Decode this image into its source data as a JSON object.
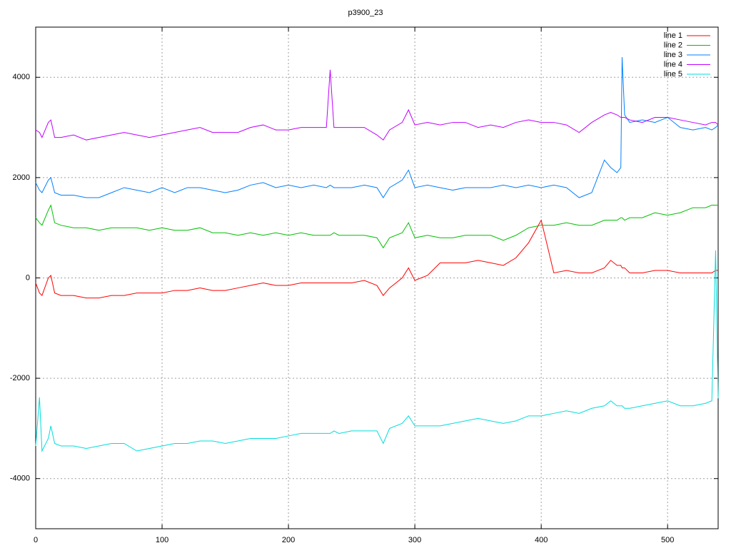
{
  "chart_data": {
    "type": "line",
    "title": "p3900_23",
    "x": [
      0,
      3,
      5,
      10,
      12,
      15,
      20,
      30,
      40,
      50,
      60,
      70,
      80,
      90,
      100,
      110,
      120,
      130,
      140,
      150,
      160,
      170,
      180,
      190,
      200,
      210,
      220,
      230,
      233,
      236,
      240,
      250,
      260,
      270,
      275,
      280,
      290,
      295,
      300,
      310,
      320,
      330,
      340,
      350,
      360,
      370,
      380,
      390,
      400,
      410,
      420,
      430,
      440,
      450,
      455,
      460,
      463,
      464,
      466,
      470,
      480,
      490,
      500,
      510,
      520,
      530,
      535,
      538,
      540
    ],
    "series": [
      {
        "name": "line 1",
        "color": "#ff0000",
        "values": [
          -100,
          -300,
          -350,
          0,
          50,
          -300,
          -350,
          -350,
          -400,
          -400,
          -350,
          -350,
          -300,
          -300,
          -300,
          -250,
          -250,
          -200,
          -250,
          -250,
          -200,
          -150,
          -100,
          -150,
          -150,
          -100,
          -100,
          -100,
          -100,
          -100,
          -100,
          -100,
          -50,
          -150,
          -350,
          -200,
          0,
          200,
          -50,
          50,
          300,
          300,
          300,
          350,
          300,
          250,
          400,
          700,
          1150,
          100,
          150,
          100,
          100,
          200,
          350,
          250,
          250,
          200,
          200,
          100,
          100,
          150,
          150,
          100,
          100,
          100,
          100,
          150,
          150
        ]
      },
      {
        "name": "line 2",
        "color": "#00c000",
        "values": [
          1200,
          1100,
          1050,
          1350,
          1450,
          1100,
          1050,
          1000,
          1000,
          950,
          1000,
          1000,
          1000,
          950,
          1000,
          950,
          950,
          1000,
          900,
          900,
          850,
          900,
          850,
          900,
          850,
          900,
          850,
          850,
          850,
          900,
          850,
          850,
          850,
          800,
          600,
          800,
          900,
          1100,
          800,
          850,
          800,
          800,
          850,
          850,
          850,
          750,
          850,
          1000,
          1050,
          1050,
          1100,
          1050,
          1050,
          1150,
          1150,
          1150,
          1200,
          1200,
          1150,
          1200,
          1200,
          1300,
          1250,
          1300,
          1400,
          1400,
          1450,
          1450,
          1450
        ]
      },
      {
        "name": "line 3",
        "color": "#0080ff",
        "values": [
          1900,
          1750,
          1700,
          1950,
          2000,
          1700,
          1650,
          1650,
          1600,
          1600,
          1700,
          1800,
          1750,
          1700,
          1800,
          1700,
          1800,
          1800,
          1750,
          1700,
          1750,
          1850,
          1900,
          1800,
          1850,
          1800,
          1850,
          1800,
          1850,
          1800,
          1800,
          1800,
          1850,
          1800,
          1600,
          1800,
          1950,
          2150,
          1800,
          1850,
          1800,
          1750,
          1800,
          1800,
          1800,
          1850,
          1800,
          1850,
          1800,
          1850,
          1800,
          1600,
          1700,
          2350,
          2200,
          2100,
          2200,
          4400,
          3250,
          3100,
          3150,
          3100,
          3200,
          3000,
          2950,
          3000,
          2950,
          3000,
          3050
        ]
      },
      {
        "name": "line 4",
        "color": "#c000ff",
        "values": [
          2950,
          2900,
          2800,
          3100,
          3150,
          2800,
          2800,
          2850,
          2750,
          2800,
          2850,
          2900,
          2850,
          2800,
          2850,
          2900,
          2950,
          3000,
          2900,
          2900,
          2900,
          3000,
          3050,
          2950,
          2950,
          3000,
          3000,
          3000,
          4150,
          3000,
          3000,
          3000,
          3000,
          2850,
          2750,
          2950,
          3100,
          3350,
          3050,
          3100,
          3050,
          3100,
          3100,
          3000,
          3050,
          3000,
          3100,
          3150,
          3100,
          3100,
          3050,
          2900,
          3100,
          3250,
          3300,
          3250,
          3200,
          3200,
          3200,
          3150,
          3100,
          3200,
          3200,
          3150,
          3100,
          3050,
          3100,
          3100,
          3050
        ]
      },
      {
        "name": "line 5",
        "color": "#00dddd",
        "values": [
          -3350,
          -2380,
          -3450,
          -3200,
          -2950,
          -3300,
          -3350,
          -3350,
          -3400,
          -3350,
          -3300,
          -3300,
          -3450,
          -3400,
          -3350,
          -3300,
          -3300,
          -3250,
          -3250,
          -3300,
          -3250,
          -3200,
          -3200,
          -3200,
          -3150,
          -3100,
          -3100,
          -3100,
          -3100,
          -3050,
          -3100,
          -3050,
          -3050,
          -3050,
          -3300,
          -3000,
          -2900,
          -2750,
          -2950,
          -2950,
          -2950,
          -2900,
          -2850,
          -2800,
          -2850,
          -2900,
          -2850,
          -2750,
          -2750,
          -2700,
          -2650,
          -2700,
          -2600,
          -2550,
          -2450,
          -2550,
          -2550,
          -2550,
          -2600,
          -2600,
          -2550,
          -2500,
          -2450,
          -2550,
          -2550,
          -2500,
          -2450,
          550,
          -2400
        ]
      }
    ],
    "xlim": [
      0,
      540
    ],
    "xticks": [
      0,
      100,
      200,
      300,
      400,
      500
    ],
    "ylim": [
      -5000,
      5000
    ],
    "yticks": [
      -4000,
      -2000,
      0,
      2000,
      4000
    ],
    "grid": true,
    "legend": "top-right"
  }
}
